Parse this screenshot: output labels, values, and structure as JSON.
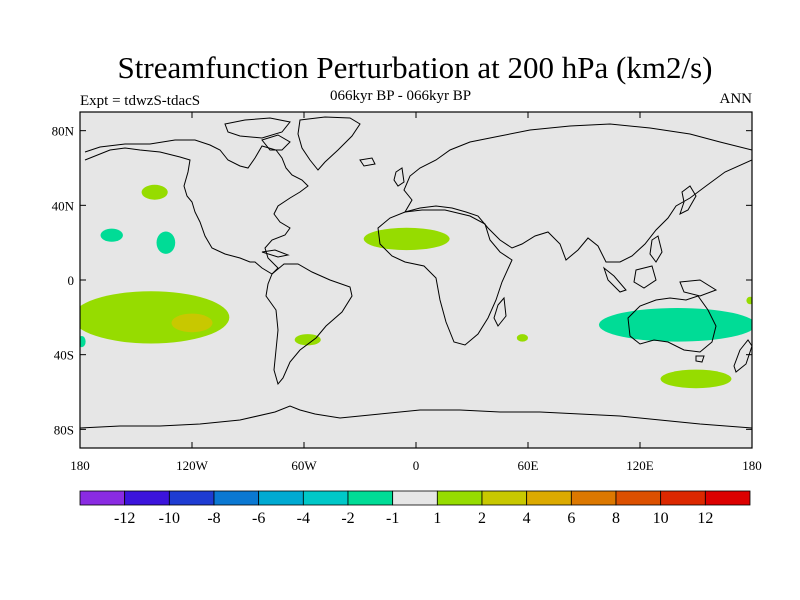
{
  "header": {
    "title": "Streamfunction Perturbation at 200 hPa (km2/s)",
    "subtitle": "066kyr BP - 066kyr BP",
    "left_label": "Expt = tdwzS-tdacS",
    "right_label": "ANN"
  },
  "map": {
    "projection": "cylindrical-equidistant",
    "lon_range": [
      -180,
      180
    ],
    "lat_range": [
      -90,
      90
    ],
    "ocean_color": "#e6e6e6",
    "x_ticks": [
      {
        "value": -180,
        "label": "180"
      },
      {
        "value": -120,
        "label": "120W"
      },
      {
        "value": -60,
        "label": "60W"
      },
      {
        "value": 0,
        "label": "0"
      },
      {
        "value": 60,
        "label": "60E"
      },
      {
        "value": 120,
        "label": "120E"
      },
      {
        "value": 180,
        "label": "180"
      }
    ],
    "y_ticks": [
      {
        "value": 80,
        "label": "80N"
      },
      {
        "value": 40,
        "label": "40N"
      },
      {
        "value": 0,
        "label": "0"
      },
      {
        "value": -40,
        "label": "40S"
      },
      {
        "value": -80,
        "label": "80S"
      }
    ],
    "anomalies": [
      {
        "lon": -140,
        "lat": 47,
        "rlon": 7,
        "rlat": 4,
        "level": "1 to 2"
      },
      {
        "lon": -163,
        "lat": 24,
        "rlon": 6,
        "rlat": 3.5,
        "level": "-2 to -1"
      },
      {
        "lon": -134,
        "lat": 20,
        "rlon": 5,
        "rlat": 6,
        "level": "-2 to -1"
      },
      {
        "lon": -5,
        "lat": 22,
        "rlon": 23,
        "rlat": 6,
        "level": "1 to 2"
      },
      {
        "lon": -142,
        "lat": -20,
        "rlon": 42,
        "rlat": 14,
        "level": "1 to 2"
      },
      {
        "lon": -120,
        "lat": -23,
        "rlon": 11,
        "rlat": 5,
        "level": "2 to 4"
      },
      {
        "lon": -58,
        "lat": -32,
        "rlon": 7,
        "rlat": 3,
        "level": "1 to 2"
      },
      {
        "lon": 57,
        "lat": -31,
        "rlon": 3,
        "rlat": 2,
        "level": "1 to 2"
      },
      {
        "lon": 140,
        "lat": -24,
        "rlon": 42,
        "rlat": 9,
        "level": "-2 to -1"
      },
      {
        "lon": 150,
        "lat": -53,
        "rlon": 19,
        "rlat": 5,
        "level": "1 to 2"
      },
      {
        "lon": 179,
        "lat": -11,
        "rlon": 2,
        "rlat": 2,
        "level": "1 to 2"
      },
      {
        "lon": -179,
        "lat": -33,
        "rlon": 2,
        "rlat": 3,
        "level": "-2 to -1"
      }
    ]
  },
  "colorbar": {
    "colors": [
      "#8a2be2",
      "#3c14dc",
      "#1e3cd2",
      "#0a78d2",
      "#00aad2",
      "#00c8c8",
      "#00dc96",
      "#e6e6e6",
      "#96dc00",
      "#c8c800",
      "#dcaa00",
      "#dc7800",
      "#dc5000",
      "#dc2800",
      "#dc0000"
    ],
    "labels": [
      "-12",
      "-10",
      "-8",
      "-6",
      "-4",
      "-2",
      "-1",
      "1",
      "2",
      "4",
      "6",
      "8",
      "10",
      "12"
    ]
  }
}
